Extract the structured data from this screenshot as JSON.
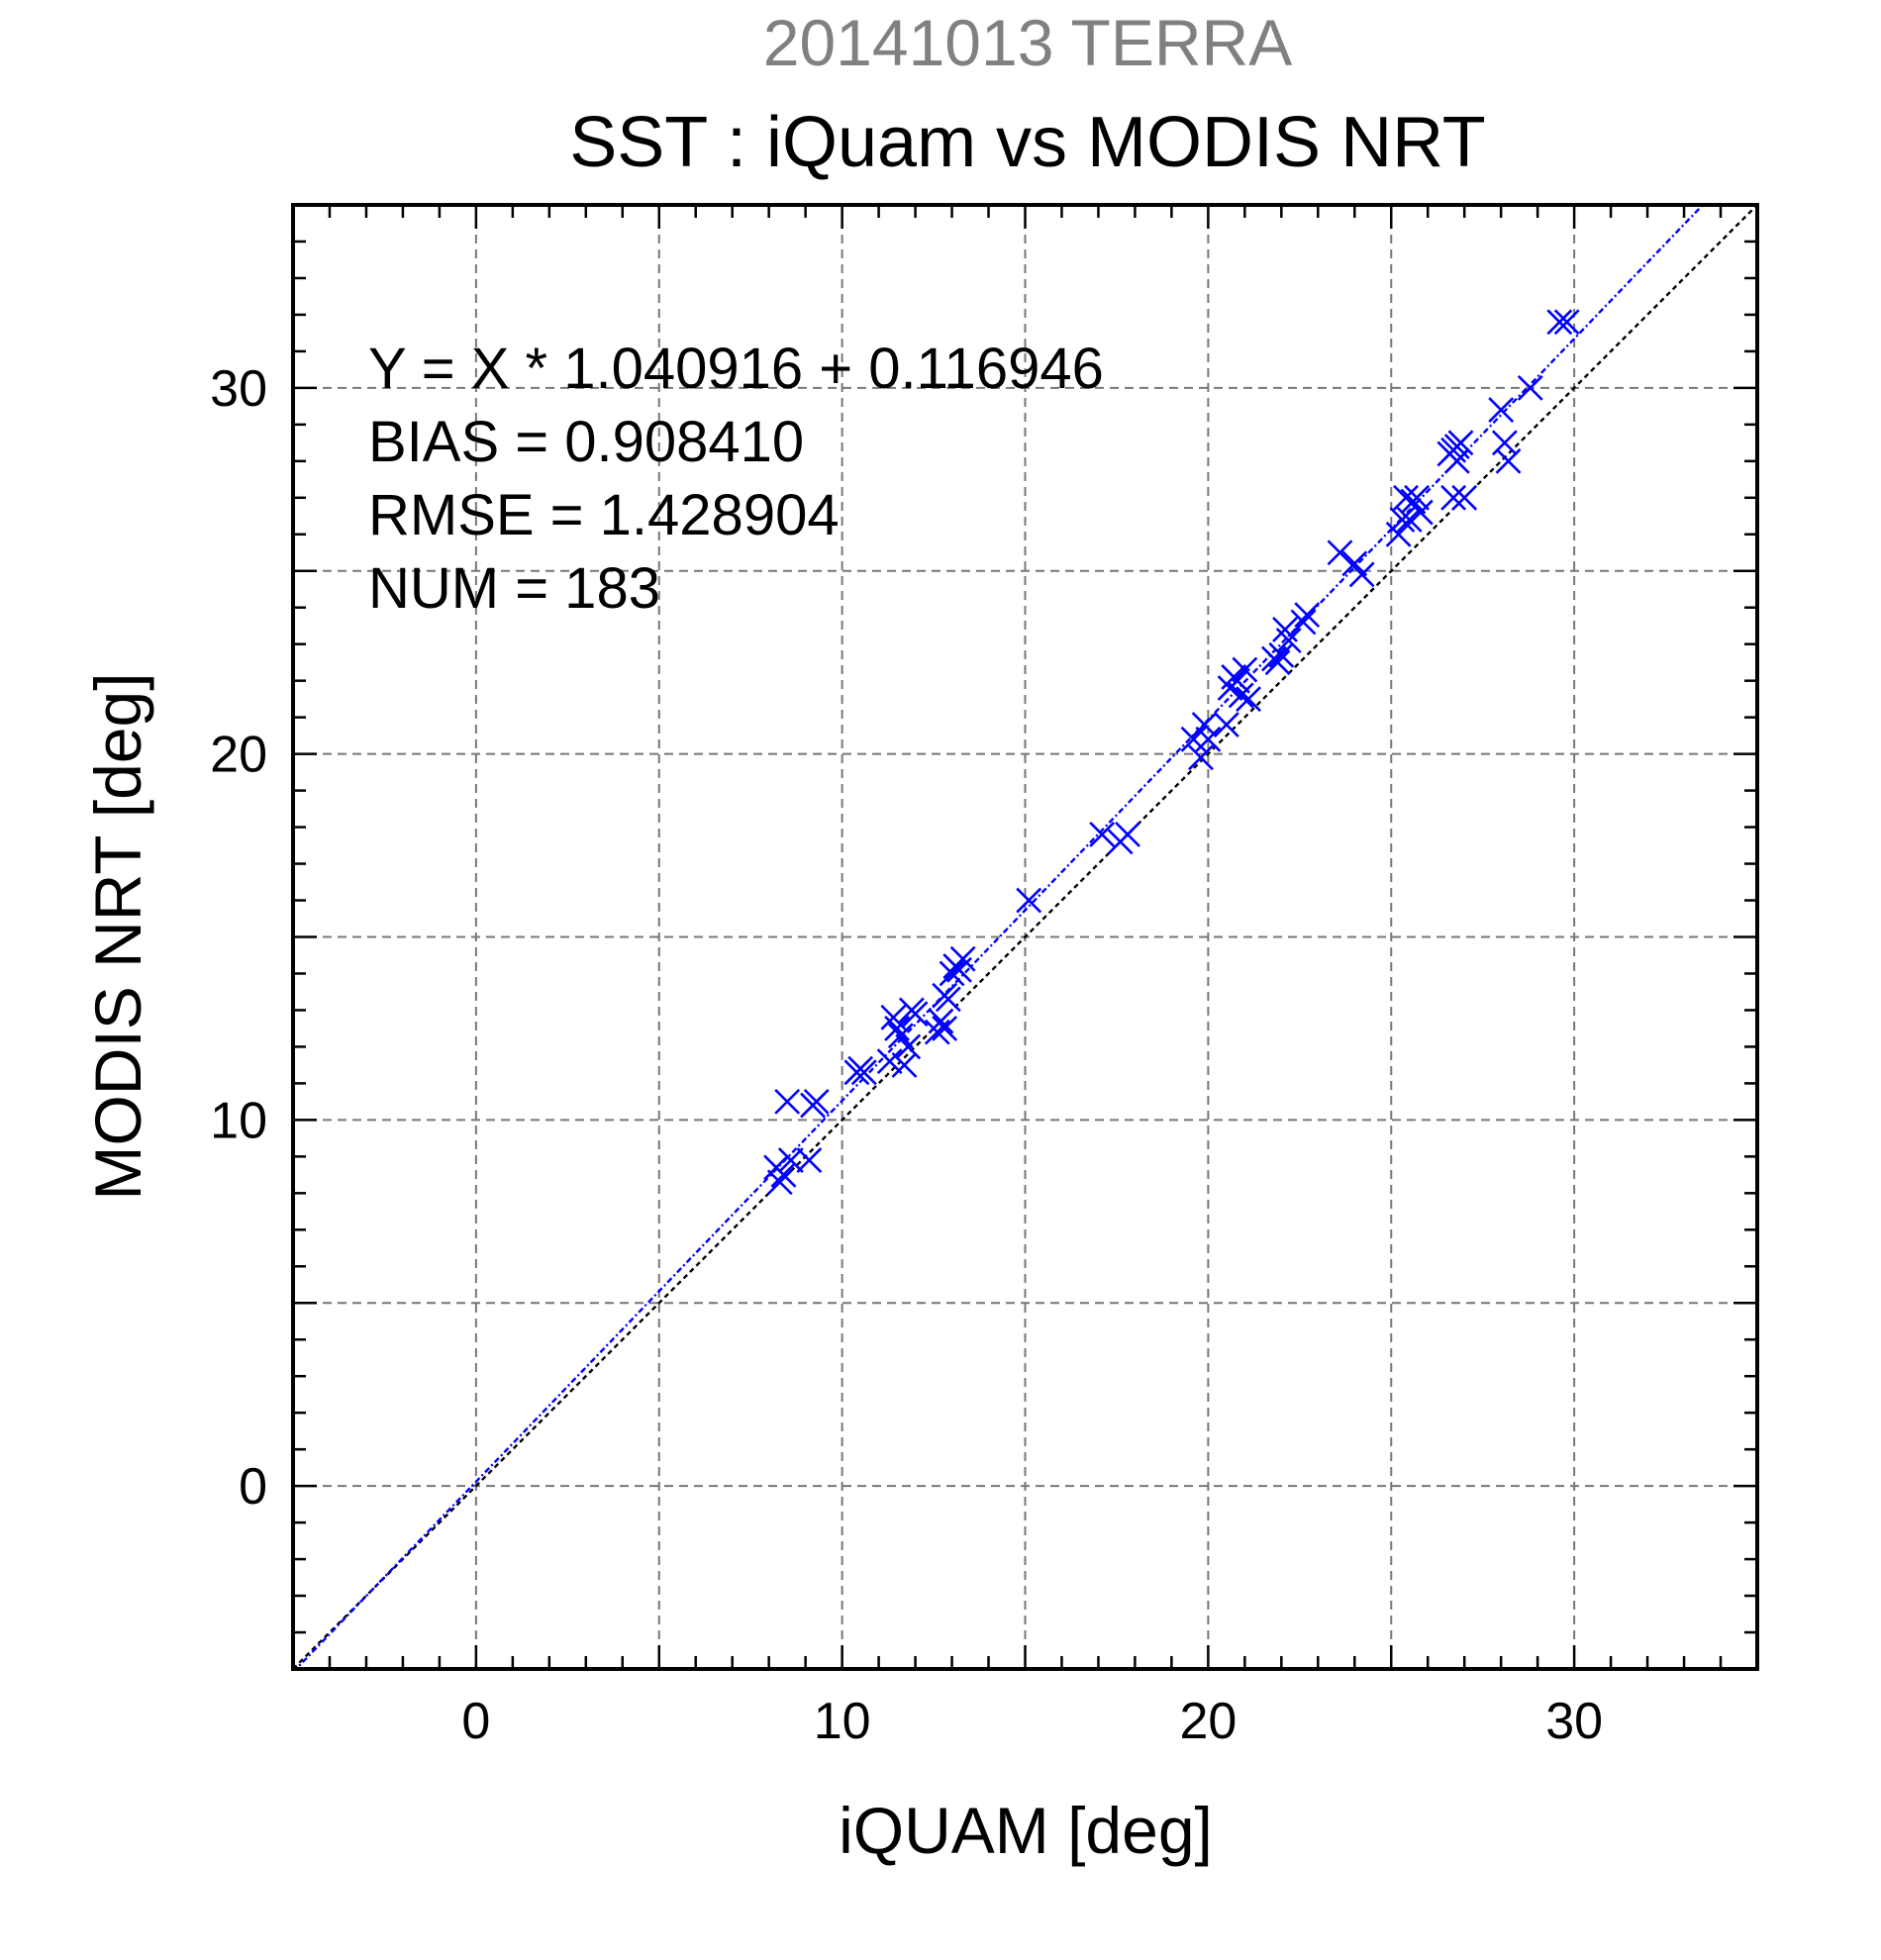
{
  "chart_data": {
    "type": "scatter",
    "suptitle": "20141013 TERRA",
    "title": "SST : iQuam vs MODIS NRT",
    "xlabel": "iQUAM [deg]",
    "ylabel": "MODIS NRT [deg]",
    "xlim": [
      -5,
      35
    ],
    "ylim": [
      -5,
      35
    ],
    "xticks": [
      0,
      10,
      20,
      30
    ],
    "yticks": [
      0,
      10,
      20,
      30
    ],
    "xtick_labels": [
      "0",
      "10",
      "20",
      "30"
    ],
    "ytick_labels": [
      "0",
      "10",
      "20",
      "30"
    ],
    "grid_step": 5,
    "minor_step": 1,
    "grid": true,
    "stats": [
      "Y = X * 1.040916 + 0.116946",
      "BIAS = 0.908410",
      "RMSE = 1.428904",
      "NUM = 183"
    ],
    "fit": {
      "slope": 1.040916,
      "intercept": 0.116946,
      "color": "#0000ff"
    },
    "reference_line": {
      "slope": 1,
      "intercept": 0,
      "color": "#000000"
    },
    "series": [
      {
        "color": "#0000ff",
        "marker": "x",
        "x": [
          8.2,
          8.4,
          8.3,
          8.5,
          8.6,
          9.1,
          9.3,
          9.2,
          10.4,
          10.6,
          10.5,
          11.3,
          11.5,
          11.6,
          11.8,
          11.7,
          11.4,
          12.0,
          11.9,
          12.7,
          12.8,
          12.9,
          13.0,
          13.1,
          12.6,
          13.3,
          13.2,
          12.8,
          15.1,
          17.1,
          17.6,
          17.8,
          19.6,
          19.8,
          20.0,
          19.9,
          20.6,
          20.7,
          20.8,
          21.0,
          20.9,
          21.1,
          20.5,
          21.8,
          22.0,
          21.9,
          22.2,
          22.1,
          22.6,
          22.7,
          23.6,
          24.0,
          24.2,
          25.3,
          25.4,
          25.6,
          25.2,
          25.5,
          25.8,
          25.7,
          26.6,
          26.7,
          26.8,
          26.9,
          26.7,
          27.0,
          26.8,
          28.0,
          28.1,
          28.2,
          28.8,
          29.6,
          29.8
        ],
        "y": [
          8.7,
          8.5,
          8.3,
          10.5,
          8.9,
          8.9,
          10.5,
          10.4,
          11.3,
          11.3,
          11.4,
          11.6,
          12.5,
          12.3,
          12.0,
          11.5,
          12.8,
          12.9,
          13.0,
          12.7,
          13.4,
          13.3,
          14.0,
          14.2,
          12.4,
          14.4,
          14.1,
          12.5,
          16.0,
          17.8,
          17.6,
          17.8,
          20.4,
          19.9,
          20.4,
          20.8,
          21.8,
          22.1,
          22.0,
          22.3,
          21.6,
          21.5,
          20.8,
          22.6,
          22.7,
          22.5,
          23.1,
          23.4,
          23.6,
          23.8,
          25.5,
          25.2,
          24.9,
          26.4,
          27.0,
          26.9,
          26.0,
          26.4,
          26.6,
          27.0,
          28.2,
          28.3,
          28.4,
          28.5,
          27.0,
          27.0,
          28.0,
          29.4,
          28.5,
          28.0,
          30.0,
          31.8,
          31.8
        ]
      }
    ]
  }
}
